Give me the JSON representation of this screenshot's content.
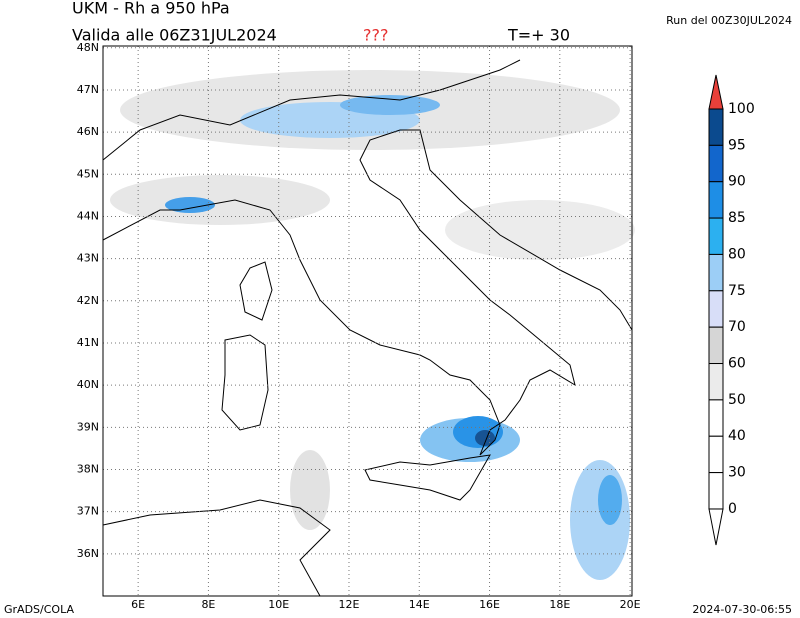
{
  "header": {
    "title": "UKM - Rh a 950 hPa",
    "run": "Run del 00Z30JUL2024",
    "valid": "Valida alle 06Z31JUL2024",
    "flag": "???",
    "step": "T=+ 30"
  },
  "map": {
    "lat_ticks": [
      {
        "value": 48,
        "label": "48N"
      },
      {
        "value": 47,
        "label": "47N"
      },
      {
        "value": 46,
        "label": "46N"
      },
      {
        "value": 45,
        "label": "45N"
      },
      {
        "value": 44,
        "label": "44N"
      },
      {
        "value": 43,
        "label": "43N"
      },
      {
        "value": 42,
        "label": "42N"
      },
      {
        "value": 41,
        "label": "41N"
      },
      {
        "value": 40,
        "label": "40N"
      },
      {
        "value": 39,
        "label": "39N"
      },
      {
        "value": 38,
        "label": "38N"
      },
      {
        "value": 37,
        "label": "37N"
      },
      {
        "value": 36,
        "label": "36N"
      }
    ],
    "lon_ticks": [
      {
        "value": 6,
        "label": "6E"
      },
      {
        "value": 8,
        "label": "8E"
      },
      {
        "value": 10,
        "label": "10E"
      },
      {
        "value": 12,
        "label": "12E"
      },
      {
        "value": 14,
        "label": "14E"
      },
      {
        "value": 16,
        "label": "16E"
      },
      {
        "value": 18,
        "label": "18E"
      },
      {
        "value": 20,
        "label": "20E"
      }
    ]
  },
  "colorbar": {
    "levels": [
      100,
      95,
      90,
      85,
      80,
      75,
      70,
      60,
      50,
      40,
      30,
      0
    ],
    "colors": [
      "#0b4a8e",
      "#1266cc",
      "#1e8ee6",
      "#2cb0f0",
      "#9ccef6",
      "#d8def8",
      "#d6d6d6",
      "#ebebeb",
      "#ffffff",
      "#ffffff",
      "#ffffff"
    ],
    "over_color": "#e8403a",
    "under_color": "#ffffff"
  },
  "footer": {
    "left": "GrADS/COLA",
    "right": "2024-07-30-06:55"
  }
}
